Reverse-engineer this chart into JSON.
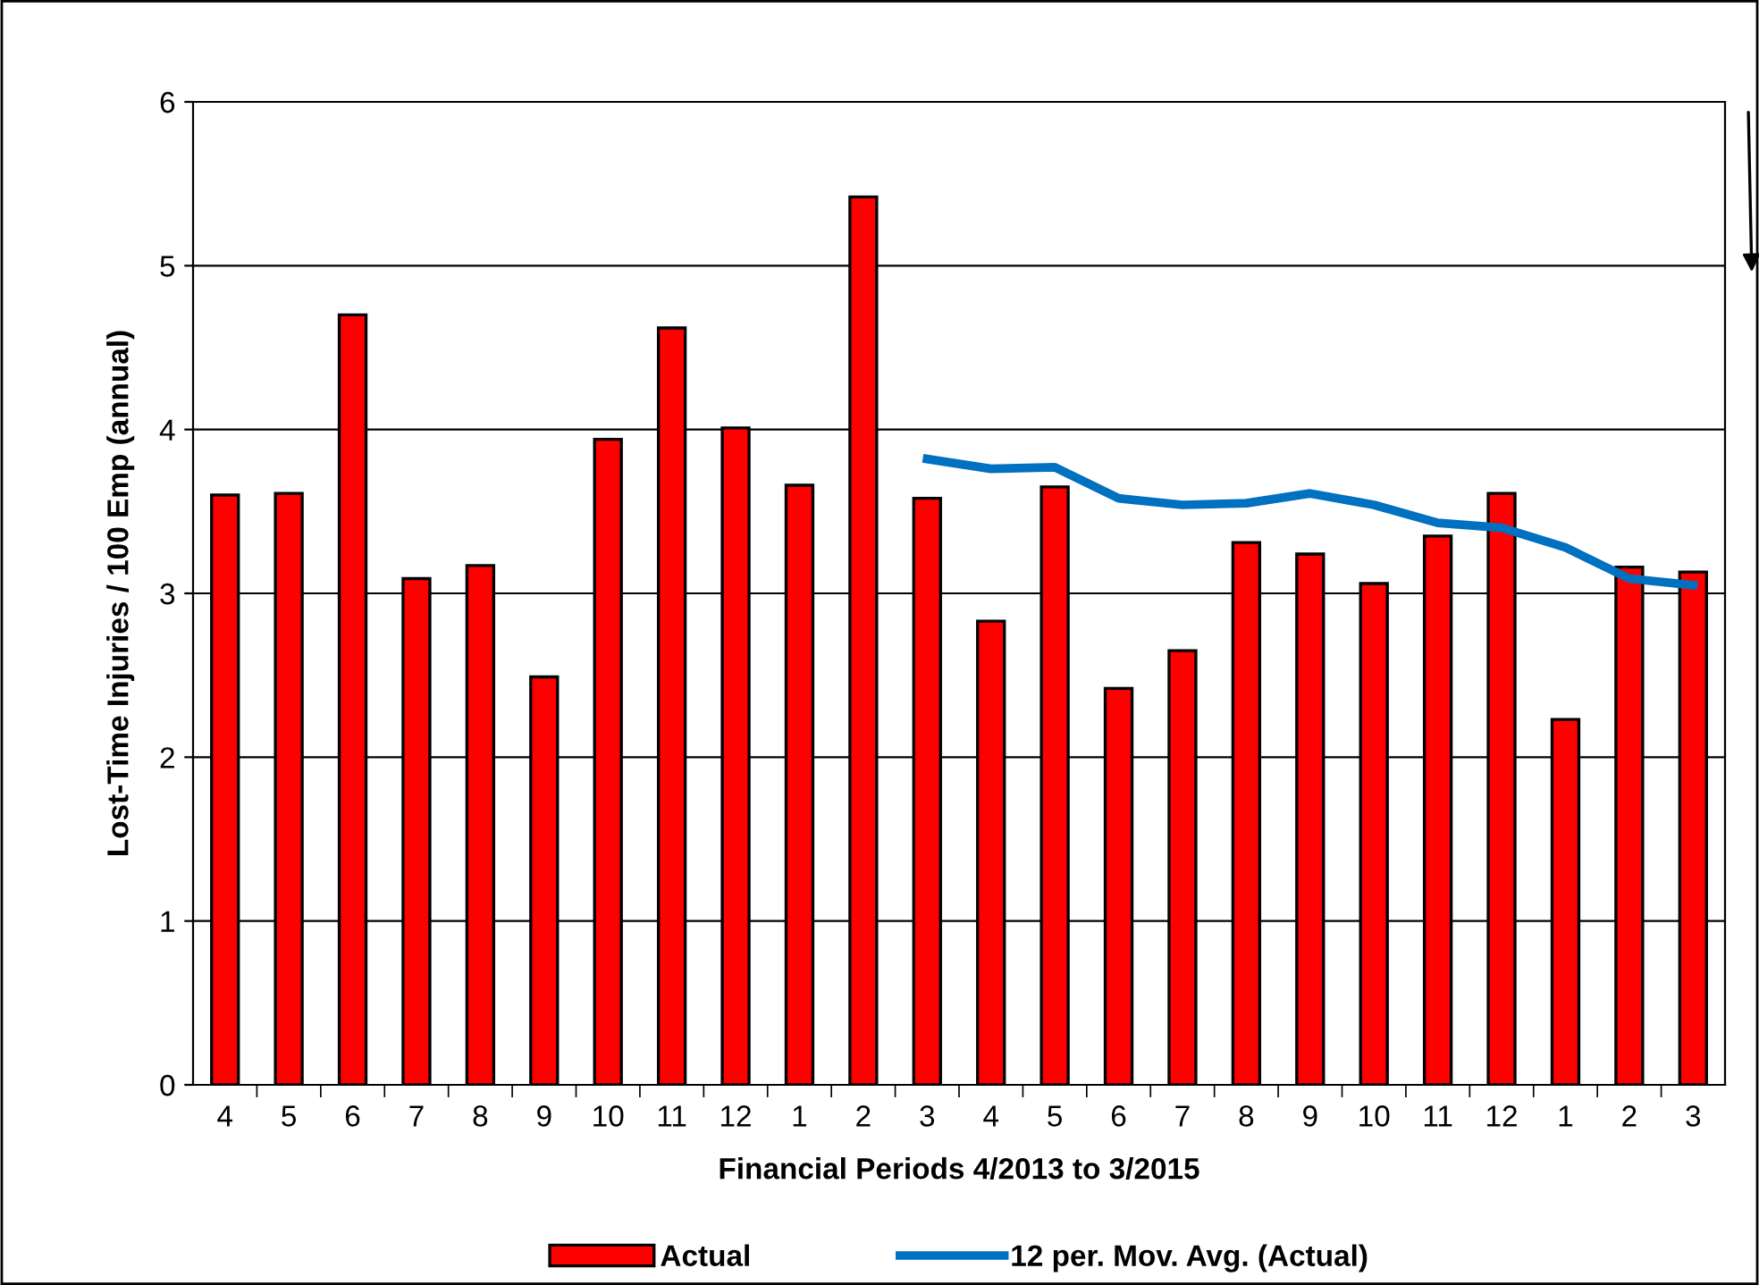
{
  "chart_data": {
    "type": "bar",
    "xlabel": "Financial Periods 4/2013 to 3/2015",
    "ylabel": "Lost-Time Injuries / 100 Emp (annual)",
    "categories": [
      "4",
      "5",
      "6",
      "7",
      "8",
      "9",
      "10",
      "11",
      "12",
      "1",
      "2",
      "3",
      "4",
      "5",
      "6",
      "7",
      "8",
      "9",
      "10",
      "11",
      "12",
      "1",
      "2",
      "3"
    ],
    "series": [
      {
        "name": "Actual",
        "color": "#ff0000",
        "values": [
          3.6,
          3.61,
          4.7,
          3.09,
          3.17,
          2.49,
          3.94,
          4.62,
          4.01,
          3.66,
          5.42,
          3.58,
          2.83,
          3.65,
          2.42,
          2.65,
          3.31,
          3.24,
          3.06,
          3.35,
          3.61,
          2.23,
          3.16,
          3.13
        ]
      },
      {
        "name": "12 per. Mov. Avg. (Actual)",
        "type": "line",
        "color": "#0070c0",
        "values": [
          null,
          null,
          null,
          null,
          null,
          null,
          null,
          null,
          null,
          null,
          null,
          3.82,
          3.76,
          3.77,
          3.58,
          3.54,
          3.55,
          3.61,
          3.54,
          3.43,
          3.4,
          3.28,
          3.09,
          3.05
        ]
      }
    ],
    "ylim": [
      0,
      6
    ],
    "yticks": [
      0,
      1,
      2,
      3,
      4,
      5,
      6
    ],
    "grid": "y",
    "legend": "bottom",
    "marker": "none"
  }
}
